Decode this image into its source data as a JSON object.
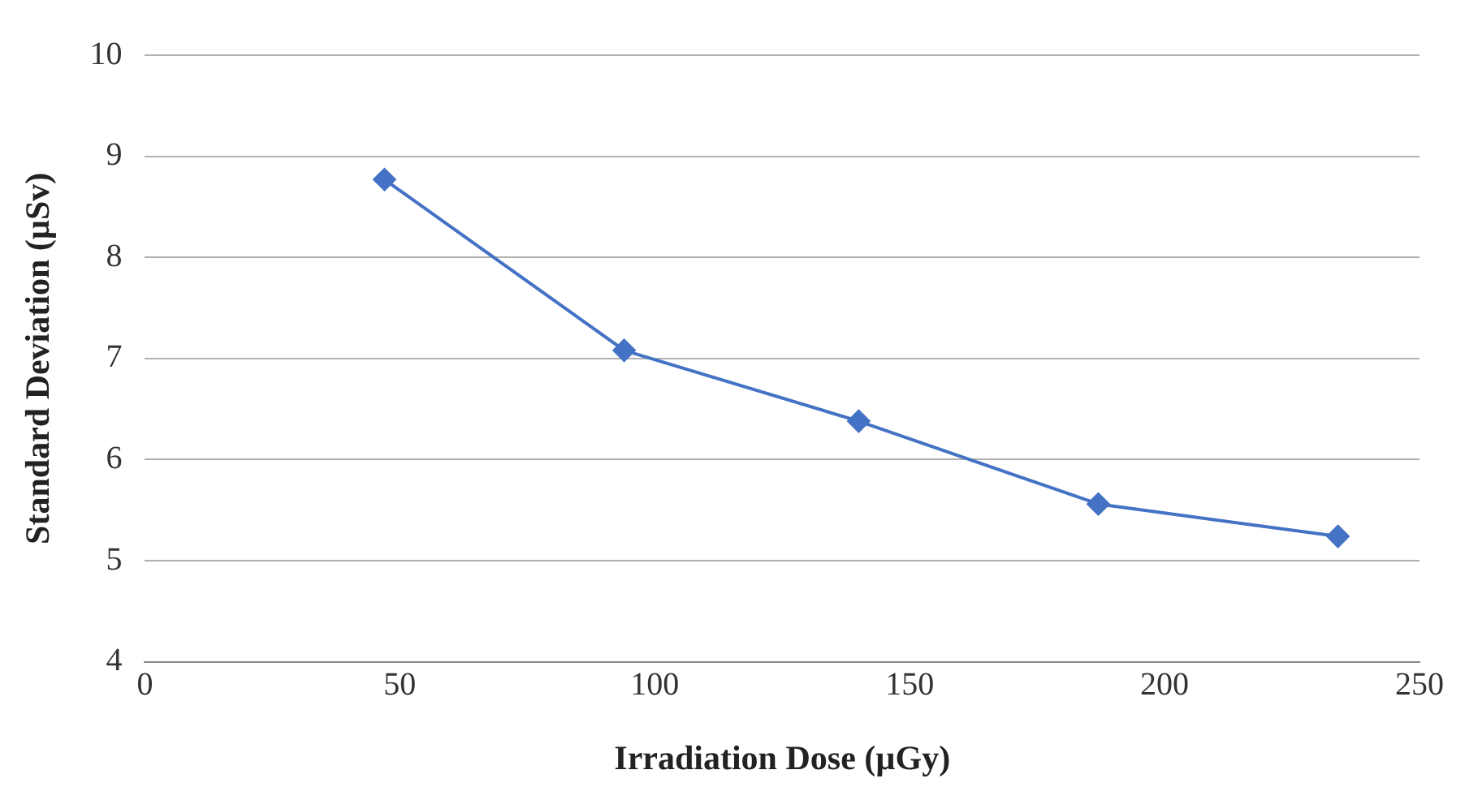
{
  "chart_data": {
    "type": "line",
    "xlabel": "Irradiation Dose (µGy)",
    "ylabel": "Standard Deviation (µSv)",
    "x": [
      47,
      94,
      140,
      187,
      234
    ],
    "series": [
      {
        "color": "#4472c4",
        "values": [
          8.77,
          7.08,
          6.38,
          5.56,
          5.24
        ]
      }
    ],
    "xlim": [
      0,
      250
    ],
    "xticks": [
      0,
      50,
      100,
      150,
      200,
      250
    ],
    "ylim": [
      4,
      10
    ],
    "yticks": [
      4,
      5,
      6,
      7,
      8,
      9,
      10
    ],
    "grid": "y",
    "marker": "diamond",
    "line_style": "solid",
    "legend": false
  }
}
